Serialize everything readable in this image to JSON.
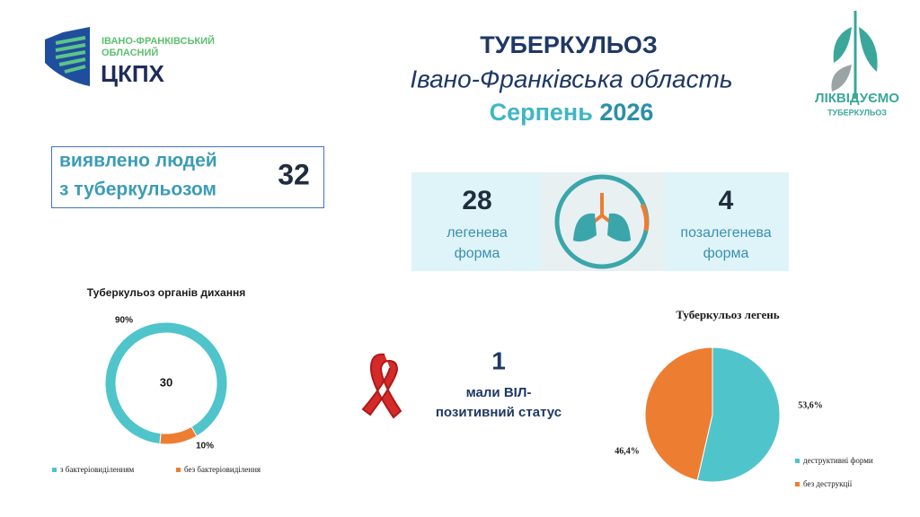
{
  "logo": {
    "region_lines": [
      "ІВАНО-ФРАНКІВСЬКИЙ",
      "ОБЛАСНИЙ"
    ],
    "name": "ЦКПХ"
  },
  "header": {
    "title": "ТУБЕРКУЛЬОЗ",
    "subtitle": "Івано-Франківська область",
    "month": "Серпень",
    "year": "2026"
  },
  "campaign_logo": {
    "lines": [
      "ЛІКВІДУЄМО",
      "ТУБЕРКУЛЬОЗ"
    ]
  },
  "detected": {
    "label_lines": [
      "виявлено людей",
      "з туберкульозом"
    ],
    "count": 32
  },
  "forms": [
    {
      "count": 28,
      "label_lines": [
        "легенева",
        "форма"
      ]
    },
    {
      "count": 4,
      "label_lines": [
        "позалегенева",
        "форма"
      ]
    }
  ],
  "hiv": {
    "count": 1,
    "label_lines": [
      "мали ВІЛ-",
      "позитивний статус"
    ]
  },
  "chart_data": [
    {
      "type": "donut",
      "title": "Туберкульоз органів дихання",
      "total": 30,
      "categories": [
        "з бактеріовиділенням",
        "без бактеріовиділення"
      ],
      "values": [
        90,
        10
      ],
      "value_labels": [
        "90%",
        "10%"
      ],
      "colors": [
        "#4fc4cb",
        "#ed7d31"
      ]
    },
    {
      "type": "pie",
      "title": "Туберкульоз легень",
      "categories": [
        "деструктивні  форми",
        "без деструкції"
      ],
      "values": [
        53.6,
        46.4
      ],
      "value_labels": [
        "53,6%",
        "46,4%"
      ],
      "colors": [
        "#4fc4cb",
        "#ed7d31"
      ]
    }
  ]
}
